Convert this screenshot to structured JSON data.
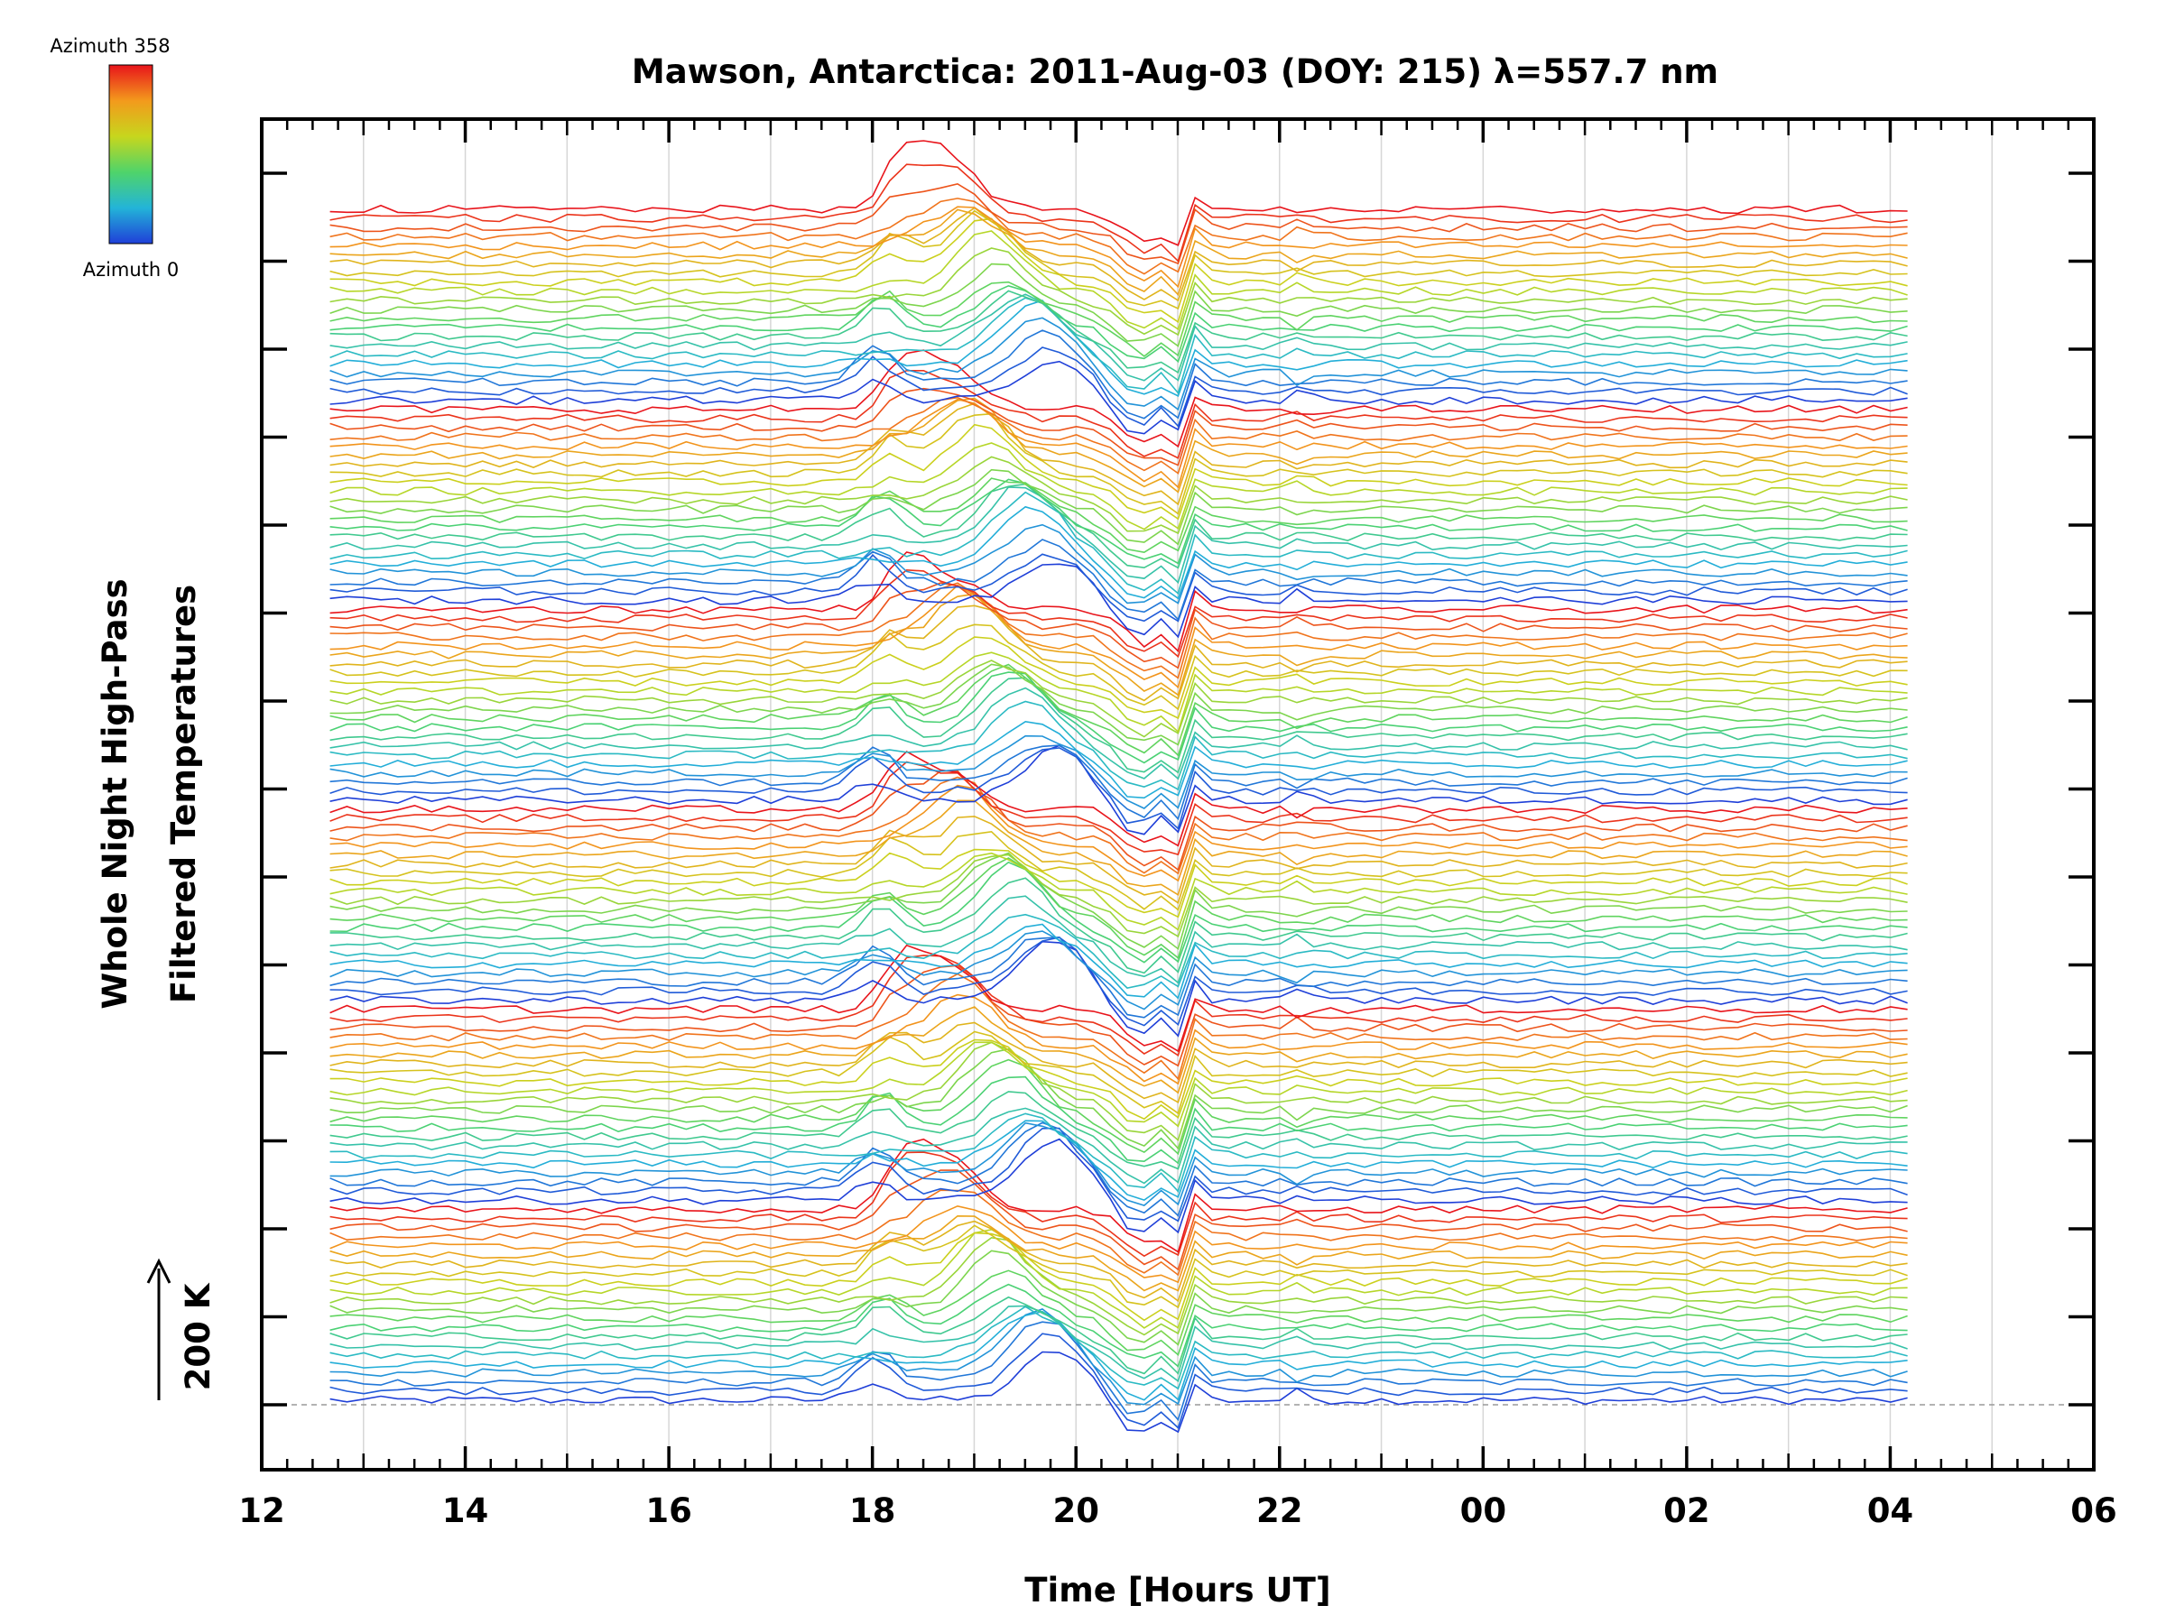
{
  "colorbar": {
    "top_label": "Azimuth 358",
    "bottom_label": "Azimuth 0",
    "colors": [
      "#e8141b",
      "#f39a1c",
      "#c7d61d",
      "#4fd46a",
      "#23b4d8",
      "#1f3fd8"
    ]
  },
  "scale_label": "200 K",
  "chart_data": {
    "type": "line",
    "title": "Mawson, Antarctica: 2011-Aug-03 (DOY: 215) λ=557.7 nm",
    "xlabel": "Time [Hours UT]",
    "ylabel_line1": "Whole Night High-Pass",
    "ylabel_line2": "Filtered Temperatures",
    "xlim_hours": [
      12,
      30
    ],
    "x_tick_labels": [
      "12",
      "14",
      "16",
      "18",
      "20",
      "22",
      "00",
      "02",
      "04",
      "06"
    ],
    "data_start_hour": 12.67,
    "data_end_hour": 28.17,
    "vertical_gridlines": true,
    "color_mapping": "azimuth 0 (blue) to 358 (red)",
    "series_groups": 6,
    "lines_per_group": 22,
    "features": [
      {
        "hour": 18.0,
        "description": "wave onset"
      },
      {
        "hour": 19.8,
        "description": "largest temperature excursion"
      },
      {
        "hour": 21.0,
        "description": "sharp dip"
      },
      {
        "hour": 21.2,
        "description": "secondary oscillation"
      }
    ]
  }
}
